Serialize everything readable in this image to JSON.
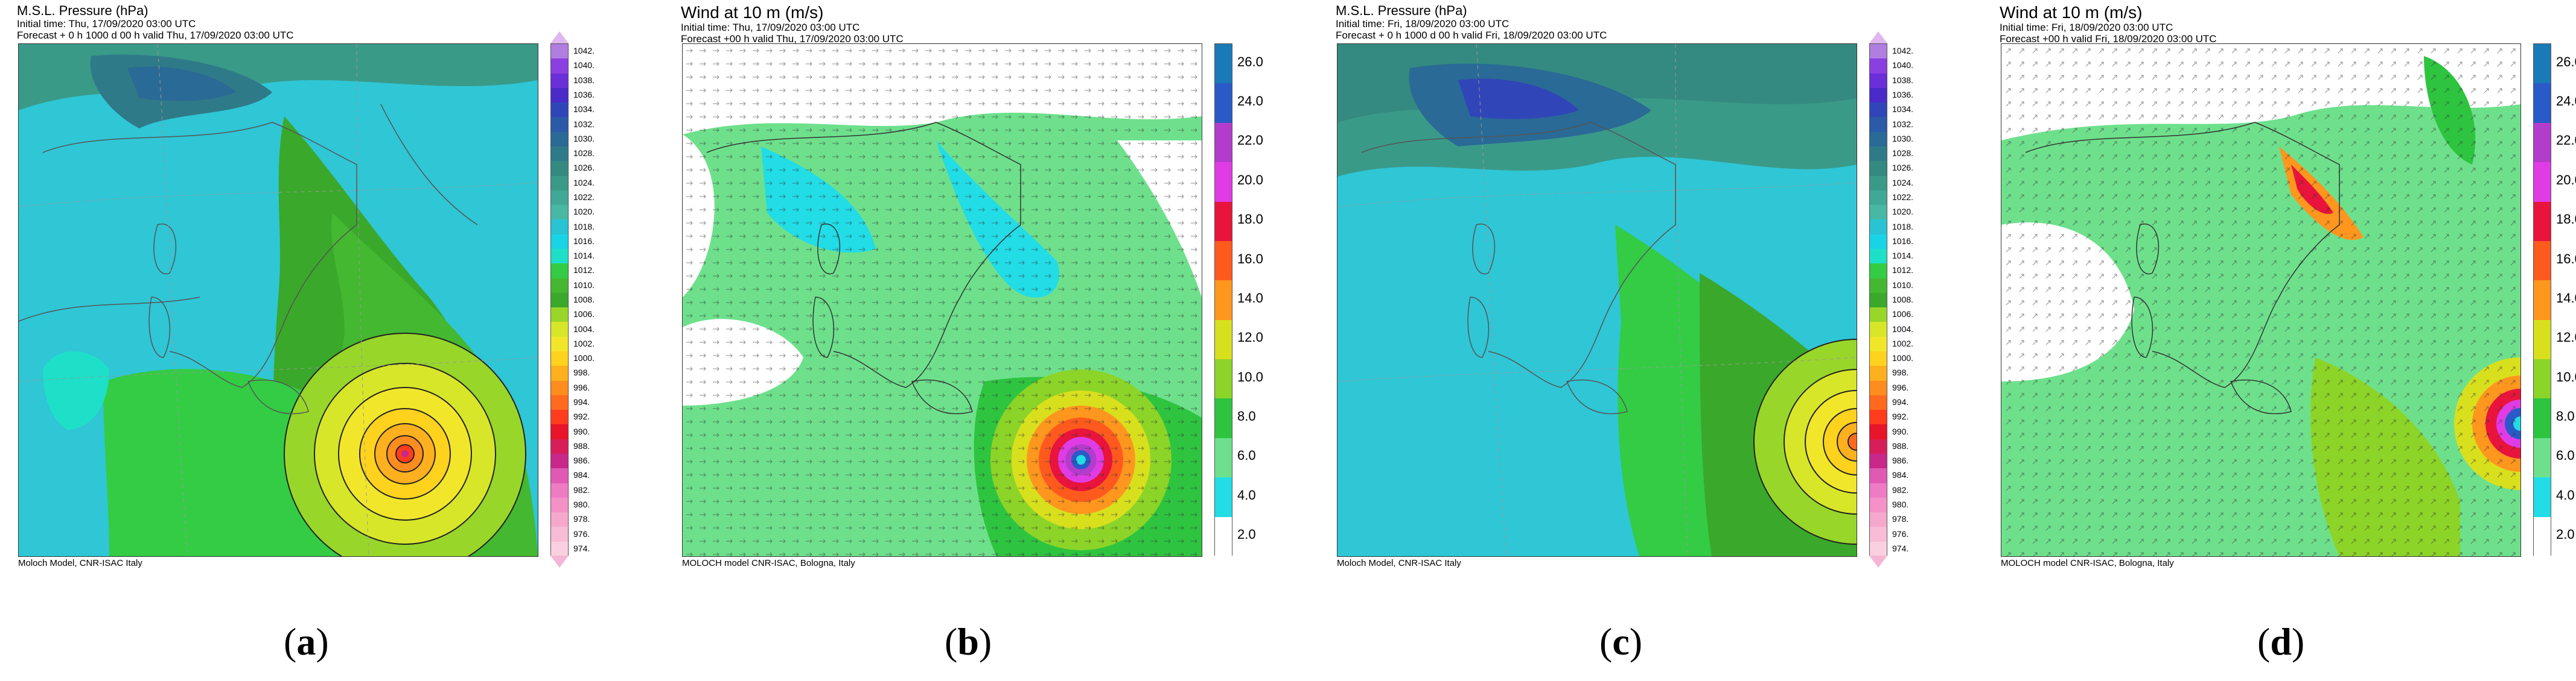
{
  "panels": [
    {
      "id": "a",
      "kind": "pressure",
      "title": "M.S.L. Pressure (hPa)",
      "line2": "Initial time: Thu, 17/09/2020 03:00 UTC",
      "line3": "Forecast + 0 h 1000 d 00 h valid Thu, 17/09/2020 03:00 UTC",
      "footer": "Moloch Model, CNR-ISAC Italy",
      "caption": "a"
    },
    {
      "id": "b",
      "kind": "wind",
      "title": "Wind at 10 m (m/s)",
      "line2": "Initial time: Thu, 17/09/2020 03:00 UTC",
      "line3": "Forecast +00 h valid Thu, 17/09/2020 03:00 UTC",
      "footer": "MOLOCH model CNR-ISAC, Bologna, Italy",
      "caption": "b"
    },
    {
      "id": "c",
      "kind": "pressure",
      "title": "M.S.L. Pressure (hPa)",
      "line2": "Initial time: Fri, 18/09/2020 03:00 UTC",
      "line3": "Forecast + 0 h 1000 d 00 h valid Fri, 18/09/2020 03:00 UTC",
      "footer": "Moloch Model, CNR-ISAC Italy",
      "caption": "c"
    },
    {
      "id": "d",
      "kind": "wind",
      "title": "Wind at 10 m (m/s)",
      "line2": "Initial time: Fri, 18/09/2020 03:00 UTC",
      "line3": "Forecast +00 h valid Fri, 18/09/2020 03:00 UTC",
      "footer": "MOLOCH model CNR-ISAC, Bologna, Italy",
      "caption": "d"
    }
  ],
  "pressure_scale": {
    "labels": [
      "1042.",
      "1040.",
      "1038.",
      "1036.",
      "1034.",
      "1032.",
      "1030.",
      "1028.",
      "1026.",
      "1024.",
      "1022.",
      "1020.",
      "1018.",
      "1016.",
      "1014.",
      "1012.",
      "1010.",
      "1008.",
      "1006.",
      "1004.",
      "1002.",
      "1000.",
      "998.",
      "996.",
      "994.",
      "992.",
      "990.",
      "988.",
      "986.",
      "984.",
      "982.",
      "980.",
      "978.",
      "976.",
      "974."
    ],
    "colors": [
      "#b07de0",
      "#8a3fe0",
      "#6a2fd8",
      "#4a2ac8",
      "#3046b8",
      "#2a5aa8",
      "#2a6a96",
      "#2f7a88",
      "#348a80",
      "#3a9a88",
      "#40a896",
      "#48b8a4",
      "#28c4d4",
      "#19d4e6",
      "#1ee0c8",
      "#33cc44",
      "#44b830",
      "#3aa82a",
      "#98d62a",
      "#d8e62a",
      "#f2e62a",
      "#ffd21e",
      "#ffb01e",
      "#ff8c1e",
      "#ff6a1e",
      "#ff3c1e",
      "#e8142a",
      "#d81e5a",
      "#c8288a",
      "#e05ab4",
      "#ee7cc4",
      "#f492c8",
      "#f6a8cc",
      "#f8bcd6",
      "#fad0e0"
    ]
  },
  "wind_scale": {
    "labels": [
      "26.0",
      "24.0",
      "22.0",
      "20.0",
      "18.0",
      "16.0",
      "14.0",
      "12.0",
      "10.0",
      "8.0",
      "6.0",
      "4.0",
      "2.0"
    ],
    "colors": [
      "#1a7ab8",
      "#2a5ac8",
      "#b43ccc",
      "#e03ce6",
      "#e8143c",
      "#ff5a1e",
      "#ff961e",
      "#d8e01e",
      "#8cd428",
      "#2ec440",
      "#6ee08c",
      "#22dce6",
      "#ffffff"
    ]
  }
}
